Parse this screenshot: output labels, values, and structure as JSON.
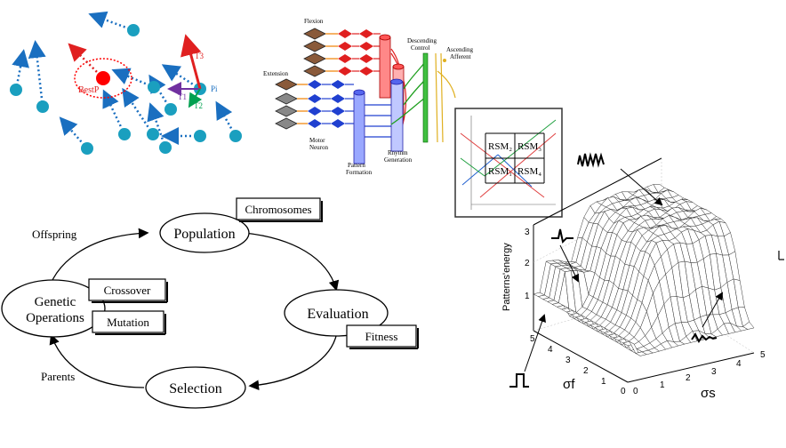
{
  "swarm": {
    "pbest_label": "BestP",
    "particle_label": "Pi",
    "t1": "T1",
    "t2": "T2",
    "t3": "T3",
    "colors": {
      "particle": "#1a9fbf",
      "best": "#ff0000",
      "t1": "#7030a0",
      "t2": "#00a050",
      "t3": "#e02020"
    }
  },
  "cpg": {
    "flexion": "Flexion",
    "extension": "Extension",
    "descending": [
      "Descending",
      "Control"
    ],
    "ascending": [
      "Ascending",
      "Afferent"
    ],
    "motor": [
      "Motor",
      "Neuron"
    ],
    "pattern": [
      "Pattern",
      "Formation"
    ],
    "rhythm": [
      "Rhythm",
      "Generation"
    ]
  },
  "genetic": {
    "population": "Population",
    "chromosomes": "Chromosomes",
    "evaluation": "Evaluation",
    "fitness": "Fitness",
    "selection": "Selection",
    "genetic_operations": [
      "Genetic",
      "Operations"
    ],
    "crossover": "Crossover",
    "mutation": "Mutation",
    "offspring": "Offspring",
    "parents": "Parents"
  },
  "rsm": {
    "cells": [
      "RSM₂",
      "RSM₃",
      "RSM₁",
      "RSM₄"
    ]
  },
  "surface": {
    "zlabel": "Patterns'energy",
    "xlabel": "σf",
    "ylabel": "σs",
    "z_ticks": [
      "1",
      "2",
      "3"
    ],
    "f_ticks": [
      "5",
      "4",
      "3",
      "2",
      "1",
      "0"
    ],
    "s_ticks": [
      "0",
      "1",
      "2",
      "3",
      "4",
      "5"
    ],
    "levels": {
      "low": 0.7,
      "step": 1.2,
      "plateau": 3.5
    }
  }
}
